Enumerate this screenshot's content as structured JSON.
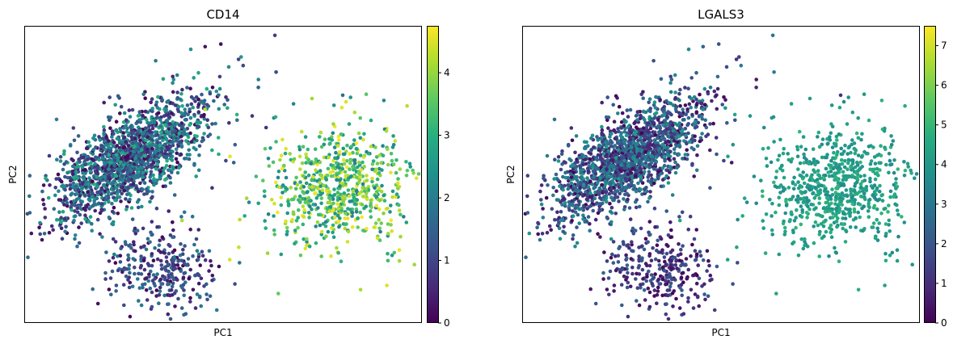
{
  "chart_data": [
    {
      "type": "scatter",
      "title": "CD14",
      "xlabel": "PC1",
      "ylabel": "PC2",
      "colormap": "viridis",
      "colorbar": {
        "min": 0,
        "max": 4.75,
        "ticks": [
          0,
          1,
          2,
          3,
          4
        ]
      },
      "grid": false,
      "clusters": [
        {
          "name": "left-upper",
          "point_count": 1700,
          "value_range": [
            0,
            3
          ]
        },
        {
          "name": "left-lower",
          "point_count": 300,
          "value_range": [
            0,
            2
          ]
        },
        {
          "name": "right",
          "point_count": 700,
          "value_range": [
            2,
            4.75
          ]
        }
      ]
    },
    {
      "type": "scatter",
      "title": "LGALS3",
      "xlabel": "PC1",
      "ylabel": "PC2",
      "colormap": "viridis",
      "colorbar": {
        "min": 0,
        "max": 7.5,
        "ticks": [
          0,
          1,
          2,
          3,
          4,
          5,
          6,
          7
        ]
      },
      "grid": false,
      "clusters": [
        {
          "name": "left-upper",
          "point_count": 1700,
          "value_range": [
            0,
            4
          ]
        },
        {
          "name": "left-lower",
          "point_count": 300,
          "value_range": [
            0,
            2.5
          ]
        },
        {
          "name": "right",
          "point_count": 700,
          "value_range": [
            3.5,
            5
          ]
        }
      ]
    }
  ]
}
